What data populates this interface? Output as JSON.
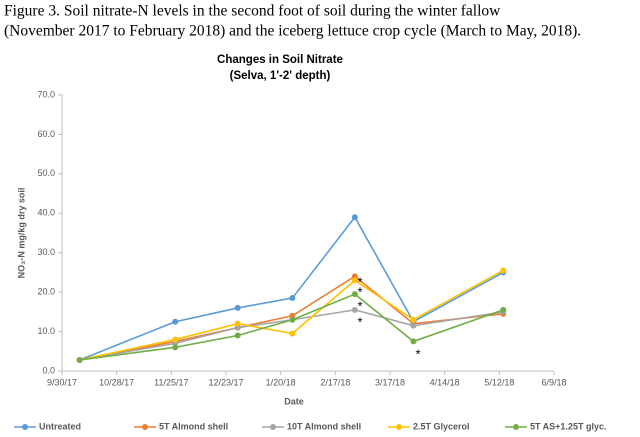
{
  "caption": [
    "Figure 3. Soil nitrate-N levels in the second foot of soil during the winter fallow",
    "(November 2017 to February 2018) and the iceberg lettuce crop cycle (March to May, 2018)."
  ],
  "chart_data": {
    "type": "line",
    "title": "Changes in Soil Nitrate",
    "subtitle": "(Selva, 1'-2' depth)",
    "x_label": "Date",
    "y_label": "NO₃-N mg/kg dry soil",
    "x": [
      "10/9/17",
      "11/27/17",
      "12/29/17",
      "1/26/18",
      "2/27/18",
      "3/29/18",
      "5/14/18"
    ],
    "series": [
      {
        "name": "Untreated",
        "color": "#5b9bd5",
        "values": [
          2.8,
          12.5,
          16,
          18.5,
          39,
          12.5,
          25
        ]
      },
      {
        "name": "5T Almond shell",
        "color": "#ed7d31",
        "values": [
          2.8,
          7.5,
          11,
          14,
          24,
          12,
          14.5
        ]
      },
      {
        "name": "10T Almond shell",
        "color": "#a5a5a5",
        "values": [
          2.8,
          7,
          11,
          13,
          15.5,
          11.5,
          15
        ]
      },
      {
        "name": "2.5T Glycerol",
        "color": "#ffc000",
        "values": [
          2.8,
          8,
          12,
          9.5,
          23,
          13,
          25.5
        ]
      },
      {
        "name": "5T AS+1.25T glyc.",
        "color": "#70ad47",
        "values": [
          2.8,
          6,
          9,
          13,
          19.5,
          7.5,
          15.5
        ]
      }
    ],
    "annotations": [
      "*",
      "*",
      "*",
      "*",
      "*"
    ],
    "xlim": [
      "9/30/17",
      "6/9/18"
    ],
    "xticks": [
      "9/30/17",
      "10/28/17",
      "11/25/17",
      "12/23/17",
      "1/20/18",
      "2/17/18",
      "3/17/18",
      "4/14/18",
      "5/12/18",
      "6/9/18"
    ],
    "ylim": [
      0,
      70
    ],
    "yticks": [
      {
        "value": 0,
        "label": "0.0"
      },
      {
        "value": 10,
        "label": "10.0"
      },
      {
        "value": 20,
        "label": "20.0"
      },
      {
        "value": 30,
        "label": "30.0"
      },
      {
        "value": 40,
        "label": "40.0"
      },
      {
        "value": 50,
        "label": "50.0"
      },
      {
        "value": 60,
        "label": "60.0"
      },
      {
        "value": 70,
        "label": "70.0"
      }
    ],
    "legend": "bottom"
  }
}
